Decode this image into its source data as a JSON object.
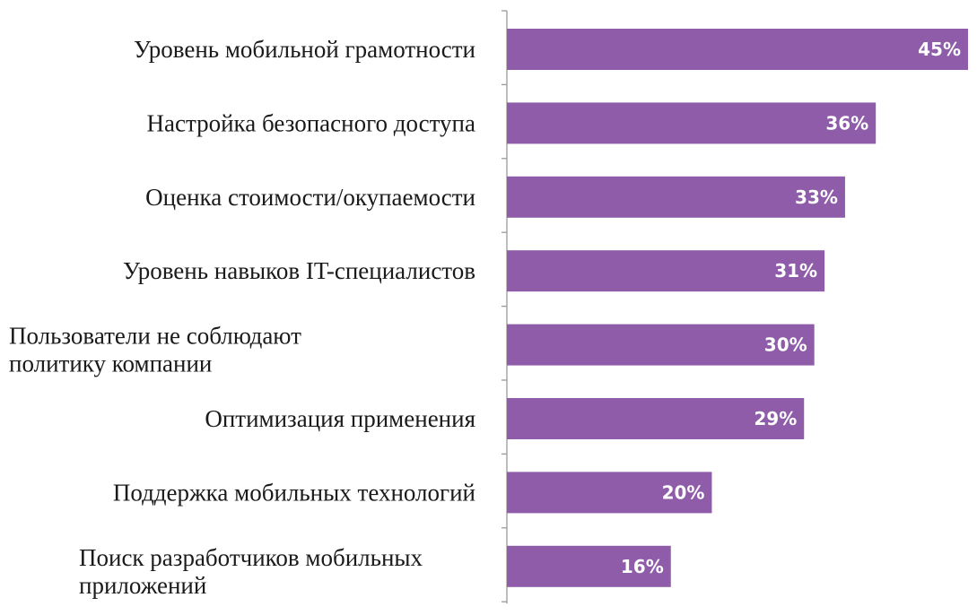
{
  "chart_data": {
    "type": "bar",
    "orientation": "horizontal",
    "categories": [
      "Уровень мобильной грамотности",
      "Настройка безопасного доступа",
      "Оценка стоимости/окупаемости",
      "Уровень навыков IT-специалистов",
      "Пользователи не соблюдают политику компании",
      "Оптимизация применения",
      "Поддержка мобильных технологий",
      "Поиск разработчиков мобильных приложений"
    ],
    "values": [
      45,
      36,
      33,
      31,
      30,
      29,
      20,
      16
    ],
    "value_labels": [
      "45%",
      "36%",
      "33%",
      "31%",
      "30%",
      "29%",
      "20%",
      "16%"
    ],
    "unit": "%",
    "xlim": [
      0,
      45
    ],
    "bar_color": "#8e5ca8",
    "grid": false,
    "legend": "none",
    "title": "",
    "xlabel": "",
    "ylabel": ""
  }
}
